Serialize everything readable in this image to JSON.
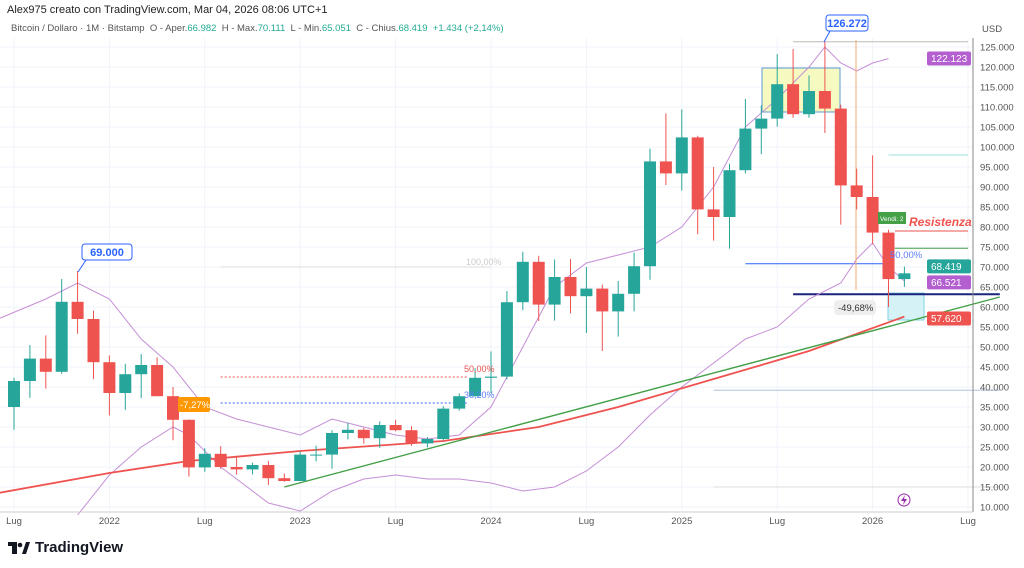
{
  "header": "Alex975 creato con TradingView.com, Mar 04, 2026 08:06 UTC+1",
  "legend": {
    "symbol": "Bitcoin / Dollaro · 1M · Bitstamp",
    "o_label": "O - Aper.",
    "o": "66.982",
    "h_label": "H - Max.",
    "h": "70.111",
    "l_label": "L - Min.",
    "l": "65.051",
    "c_label": "C - Chius.",
    "c": "68.419",
    "change": "+1.434 (+2,14%)"
  },
  "brand": "TradingView",
  "colors": {
    "up": "#26a69a",
    "down": "#ef5350",
    "band": "#c58ed6",
    "ma": "#ef5350",
    "trend": "#43a047",
    "accent": "#2962ff"
  },
  "chart_data": {
    "type": "candlestick",
    "currency": "USD",
    "ylim": [
      10,
      128
    ],
    "y_ticks": [
      10,
      15,
      20,
      25,
      30,
      35,
      40,
      45,
      50,
      55,
      60,
      65,
      70,
      75,
      80,
      85,
      90,
      95,
      100,
      105,
      110,
      115,
      120,
      125
    ],
    "y_tick_labels": [
      "10.000",
      "15.000",
      "20.000",
      "25.000",
      "30.000",
      "35.000",
      "40.000",
      "45.000",
      "50.000",
      "55.000",
      "60.000",
      "65.000",
      "70.000",
      "75.000",
      "80.000",
      "85.000",
      "90.000",
      "95.000",
      "100.000",
      "105.000",
      "110.000",
      "115.000",
      "120.000",
      "125.000"
    ],
    "x_ticks": [
      {
        "i": 0,
        "label": "Lug"
      },
      {
        "i": 6,
        "label": "2022"
      },
      {
        "i": 12,
        "label": "Lug"
      },
      {
        "i": 18,
        "label": "2023"
      },
      {
        "i": 24,
        "label": "Lug"
      },
      {
        "i": 30,
        "label": "2024"
      },
      {
        "i": 36,
        "label": "Lug"
      },
      {
        "i": 42,
        "label": "2025"
      },
      {
        "i": 48,
        "label": "Lug"
      },
      {
        "i": 54,
        "label": "2026"
      },
      {
        "i": 60,
        "label": "Lug"
      }
    ],
    "start": "2021-07",
    "ohlc": [
      [
        35,
        42.3,
        29.3,
        41.5
      ],
      [
        41.5,
        50.5,
        37.3,
        47.1
      ],
      [
        47.1,
        52.9,
        39.6,
        43.8
      ],
      [
        43.8,
        67,
        43.3,
        61.3
      ],
      [
        61.3,
        69,
        53.3,
        57
      ],
      [
        57,
        59.1,
        42,
        46.2
      ],
      [
        46.2,
        47.9,
        32.9,
        38.5
      ],
      [
        38.5,
        45.8,
        34.3,
        43.2
      ],
      [
        43.2,
        48.2,
        37.2,
        45.5
      ],
      [
        45.5,
        47.4,
        37.7,
        37.7
      ],
      [
        37.7,
        40,
        26.7,
        31.8
      ],
      [
        31.8,
        31.9,
        17.6,
        19.9
      ],
      [
        19.9,
        24.7,
        18.8,
        23.3
      ],
      [
        23.3,
        25.2,
        19.6,
        20
      ],
      [
        20,
        22.8,
        18.1,
        19.4
      ],
      [
        19.4,
        21.1,
        18.2,
        20.5
      ],
      [
        20.5,
        21.5,
        15.5,
        17.2
      ],
      [
        17.2,
        18.4,
        16.3,
        16.5
      ],
      [
        16.5,
        23.9,
        16.5,
        23.1
      ],
      [
        23.1,
        25.3,
        21.4,
        23.1
      ],
      [
        23.1,
        29.2,
        19.6,
        28.5
      ],
      [
        28.5,
        31,
        26.9,
        29.3
      ],
      [
        29.3,
        29.8,
        25.8,
        27.2
      ],
      [
        27.2,
        31.4,
        24.8,
        30.5
      ],
      [
        30.5,
        31.8,
        28.9,
        29.2
      ],
      [
        29.2,
        30.2,
        25.3,
        25.9
      ],
      [
        25.9,
        27.5,
        24.9,
        27
      ],
      [
        27,
        35.2,
        26.6,
        34.6
      ],
      [
        34.6,
        38.4,
        34.1,
        37.7
      ],
      [
        37.7,
        44.7,
        37.6,
        42.3
      ],
      [
        42.3,
        48.9,
        38.5,
        42.6
      ],
      [
        42.6,
        64,
        41.9,
        61.2
      ],
      [
        61.2,
        73.8,
        59.2,
        71.3
      ],
      [
        71.3,
        72.8,
        56.5,
        60.6
      ],
      [
        60.6,
        71.9,
        56.6,
        67.5
      ],
      [
        67.5,
        72,
        58.4,
        62.7
      ],
      [
        62.7,
        70,
        53.5,
        64.6
      ],
      [
        64.6,
        65.6,
        49,
        58.9
      ],
      [
        58.9,
        66.5,
        52.6,
        63.3
      ],
      [
        63.3,
        73.6,
        58.9,
        70.2
      ],
      [
        70.2,
        99.6,
        66.8,
        96.4
      ],
      [
        96.4,
        108.4,
        90.5,
        93.4
      ],
      [
        93.4,
        109.4,
        89.1,
        102.4
      ],
      [
        102.4,
        102.8,
        78.2,
        84.4
      ],
      [
        84.4,
        95,
        76.6,
        82.5
      ],
      [
        82.5,
        95.8,
        74.6,
        94.2
      ],
      [
        94.2,
        112,
        93.4,
        104.6
      ],
      [
        104.6,
        110.4,
        98.2,
        107.1
      ],
      [
        107.1,
        123.2,
        105.1,
        115.7
      ],
      [
        115.7,
        124.5,
        107.3,
        108.2
      ],
      [
        108.2,
        117.9,
        107.3,
        114
      ],
      [
        114,
        126.3,
        103.5,
        109.6
      ],
      [
        109.6,
        110.6,
        80.6,
        90.4
      ],
      [
        90.4,
        94.6,
        84.4,
        87.5
      ],
      [
        87.5,
        97.9,
        75.7,
        78.6
      ],
      [
        78.6,
        79.3,
        60,
        66.98
      ],
      [
        66.98,
        70.11,
        65.05,
        68.42
      ]
    ],
    "ma": [
      [
        -1,
        13.5
      ],
      [
        6,
        18.5
      ],
      [
        11,
        21.5
      ],
      [
        18,
        24
      ],
      [
        27,
        26.5
      ],
      [
        33,
        30
      ],
      [
        38,
        35
      ],
      [
        44,
        42
      ],
      [
        50,
        49
      ],
      [
        56,
        57.6
      ]
    ],
    "trendline": [
      [
        17,
        15
      ],
      [
        62,
        62.5
      ]
    ],
    "band_upper": [
      [
        -1,
        57
      ],
      [
        2,
        62
      ],
      [
        4,
        66
      ],
      [
        6,
        62
      ],
      [
        8,
        52
      ],
      [
        10,
        45
      ],
      [
        12,
        35
      ],
      [
        14,
        32
      ],
      [
        16,
        30
      ],
      [
        18,
        28
      ],
      [
        20,
        32
      ],
      [
        22,
        30
      ],
      [
        24,
        28
      ],
      [
        26,
        27
      ],
      [
        28,
        28
      ],
      [
        30,
        35
      ],
      [
        32,
        50
      ],
      [
        34,
        65
      ],
      [
        36,
        71
      ],
      [
        38,
        73
      ],
      [
        40,
        75
      ],
      [
        42,
        80
      ],
      [
        44,
        90
      ],
      [
        46,
        105
      ],
      [
        48,
        112
      ],
      [
        50,
        120
      ],
      [
        51,
        125
      ],
      [
        52,
        121
      ],
      [
        53,
        119
      ],
      [
        54,
        121
      ],
      [
        55,
        122.1
      ]
    ],
    "band_lower": [
      [
        4,
        8
      ],
      [
        6,
        18
      ],
      [
        8,
        25
      ],
      [
        10,
        30
      ],
      [
        11,
        28
      ],
      [
        13,
        20
      ],
      [
        16,
        11
      ],
      [
        18,
        9
      ],
      [
        20,
        14
      ],
      [
        22,
        17
      ],
      [
        24,
        18
      ],
      [
        26,
        17
      ],
      [
        28,
        17
      ],
      [
        30,
        16
      ],
      [
        32,
        14
      ],
      [
        34,
        15
      ],
      [
        36,
        19
      ],
      [
        38,
        25
      ],
      [
        40,
        33
      ],
      [
        42,
        40
      ],
      [
        44,
        46
      ],
      [
        46,
        52
      ],
      [
        48,
        55
      ],
      [
        50,
        62
      ],
      [
        52,
        66
      ],
      [
        53,
        72
      ],
      [
        54,
        76
      ],
      [
        55,
        70
      ],
      [
        56,
        66.5
      ]
    ],
    "levels": [
      {
        "p": 42.5,
        "from": 13,
        "to": 28.5,
        "color": "#ef5350",
        "dash": true
      },
      {
        "p": 36,
        "from": 13,
        "to": 28.5,
        "color": "#2962ff",
        "dash": true
      },
      {
        "p": 70,
        "from": 13,
        "to": 30,
        "color": "#ddd",
        "dash": false
      },
      {
        "p": 70.8,
        "from": 46,
        "to": 55,
        "color": "#2962ff",
        "dash": false
      },
      {
        "p": 63.2,
        "from": 49,
        "to": 62,
        "color": "#1a237e",
        "dash": false,
        "w": 2
      },
      {
        "p": 74.7,
        "from": 55.4,
        "to": 60,
        "color": "#43a047",
        "dash": false
      },
      {
        "p": 79,
        "from": 55.4,
        "to": 60,
        "color": "#ef5350",
        "dash": false
      },
      {
        "p": 98,
        "from": 55,
        "to": 60,
        "color": "#9ee0dc",
        "dash": false
      },
      {
        "p": 39.2,
        "from": 44,
        "to": 62,
        "color": "#b0c4de",
        "dash": false
      },
      {
        "p": 15,
        "from": 44,
        "to": 62,
        "color": "#ddd",
        "dash": false
      },
      {
        "p": 126.3,
        "from": 49,
        "to": 60,
        "color": "#bbb",
        "dash": false
      }
    ],
    "annotations": {
      "high_2021": "69.000",
      "high_2025": "126.272",
      "drop_2022": "-7,27%",
      "fib_100": "100,00%",
      "fib_50_a": "50,00%",
      "fib_382": "38,20%",
      "fib_50_b": "50,00%",
      "sell_signal": "Vendi: 2",
      "resistance": "Resistenza",
      "drawdown": "-49,68%"
    },
    "price_labels": {
      "last": "68.419",
      "band_mid": "66.521",
      "band_upper": "122.123",
      "ma": "57.620"
    }
  }
}
